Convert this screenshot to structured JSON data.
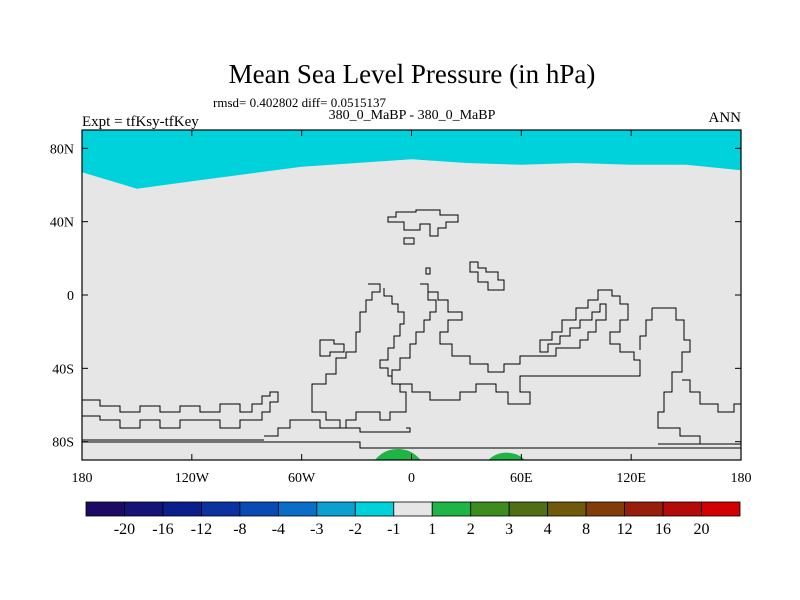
{
  "chart_data": {
    "type": "heatmap",
    "title": "Mean Sea Level Pressure (in hPa)",
    "stats_label": "rmsd= 0.402802 diff= 0.0515137",
    "subtitle": "380_0_MaBP - 380_0_MaBP",
    "left_label": "Expt = tfKsy-tfKey",
    "right_label": "ANN",
    "x_ticks": [
      "180",
      "120W",
      "60W",
      "0",
      "60E",
      "120E",
      "180"
    ],
    "x_tick_values": [
      -180,
      -120,
      -60,
      0,
      60,
      120,
      180
    ],
    "y_ticks": [
      "80N",
      "40N",
      "0",
      "40S",
      "80S"
    ],
    "y_tick_values": [
      80,
      40,
      0,
      -40,
      -80
    ],
    "xlim": [
      -180,
      180
    ],
    "ylim": [
      -90,
      90
    ],
    "colorbar_labels": [
      "-20",
      "-16",
      "-12",
      "-8",
      "-4",
      "-3",
      "-2",
      "-1",
      "1",
      "2",
      "3",
      "4",
      "8",
      "12",
      "16",
      "20"
    ],
    "colorbar_colors": [
      "#1e0a64",
      "#141478",
      "#0a1e8c",
      "#0a32a0",
      "#0a4ab4",
      "#0a6ec8",
      "#0aa0d2",
      "#00d2dc",
      "#e6e6e6",
      "#1eb446",
      "#3c8c1e",
      "#506e14",
      "#6e5a0a",
      "#823c0a",
      "#961e0a",
      "#b40a0a",
      "#d20000"
    ],
    "regions": [
      {
        "name": "arctic-negative",
        "level": "-2 to -1",
        "color": "#00d2dc",
        "boundary_lon": [
          -180,
          -150,
          -120,
          -90,
          -60,
          -30,
          0,
          30,
          60,
          90,
          120,
          150,
          180
        ],
        "boundary_lat": [
          67,
          58,
          62,
          66,
          70,
          72,
          74,
          72,
          71,
          72,
          71,
          71,
          68
        ]
      },
      {
        "name": "antarctic-positive-1",
        "level": "1 to 2",
        "color": "#1eb446",
        "lon": [
          -20,
          5
        ],
        "lat": [
          -90,
          -84
        ]
      },
      {
        "name": "antarctic-positive-2",
        "level": "1 to 2",
        "color": "#1eb446",
        "lon": [
          42,
          62
        ],
        "lat": [
          -90,
          -86
        ]
      }
    ],
    "background_level": "-1 to 1"
  }
}
